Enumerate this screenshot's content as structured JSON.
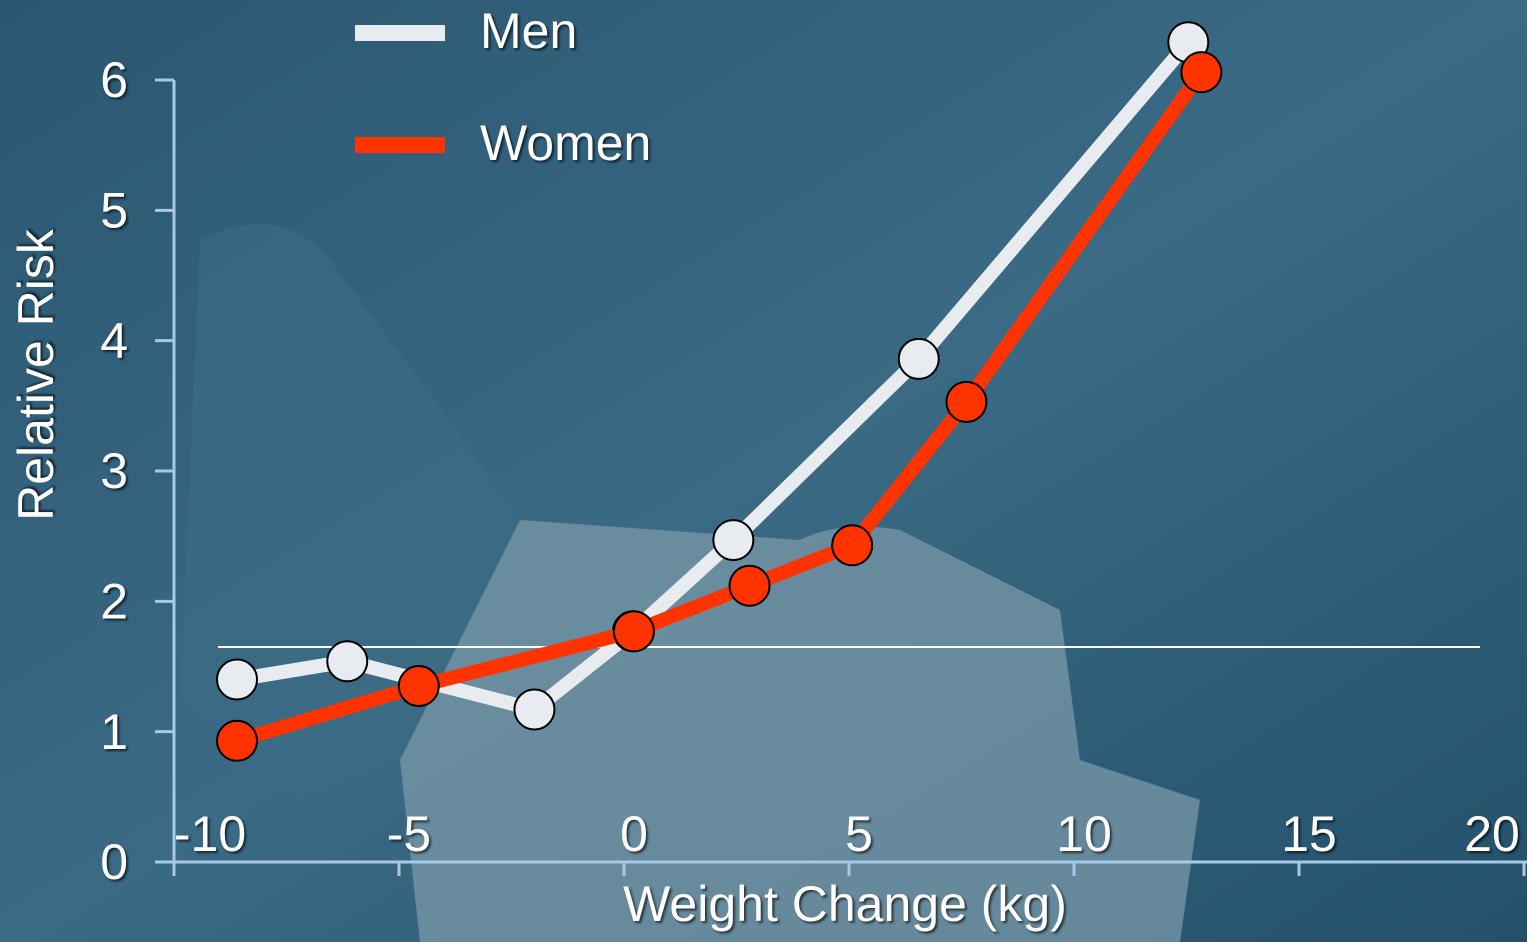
{
  "chart_data": {
    "type": "line",
    "xlabel": "Weight Change (kg)",
    "ylabel": "Relative Risk",
    "series": [
      {
        "name": "Men",
        "color": "#e8ecf0",
        "x": [
          -8.6,
          -6.15,
          -1.99,
          0.2,
          2.43,
          6.55,
          12.54
        ],
        "values": [
          1.4,
          1.54,
          1.17,
          1.77,
          2.47,
          3.86,
          6.29
        ]
      },
      {
        "name": "Women",
        "color": "#ff3300",
        "x": [
          -8.6,
          -4.56,
          0.22,
          2.79,
          5.07,
          7.61,
          12.83
        ],
        "values": [
          0.93,
          1.35,
          1.77,
          2.12,
          2.43,
          3.53,
          6.06
        ]
      }
    ],
    "reference_line": 1.65,
    "xlim": [
      -10,
      20
    ],
    "xticks": [
      -10,
      -5,
      0,
      5,
      10,
      15,
      20
    ],
    "ylim": [
      0,
      6
    ],
    "yticks": [
      0,
      1,
      2,
      3,
      4,
      5,
      6
    ],
    "legend": "top"
  }
}
